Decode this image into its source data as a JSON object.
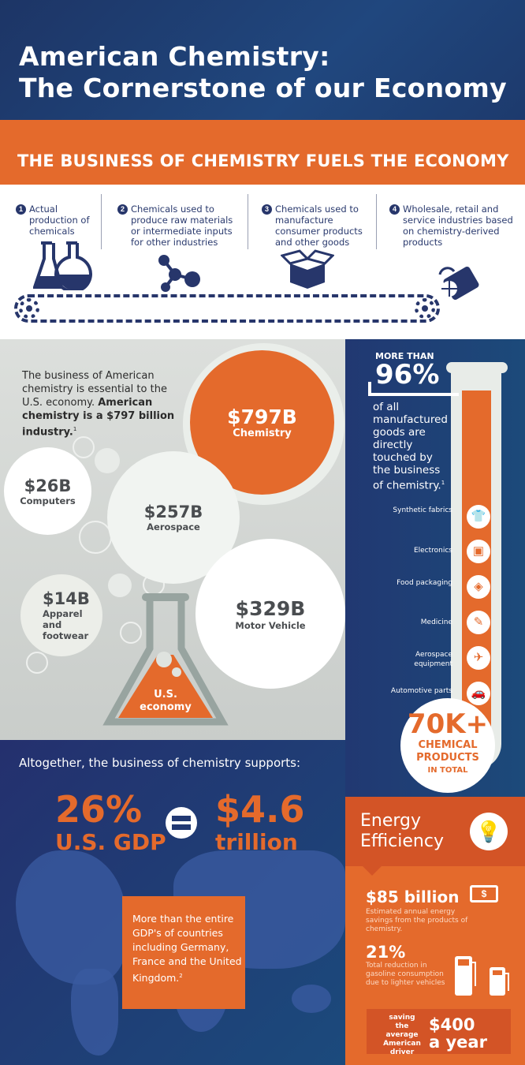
{
  "header": {
    "title_line1": "American Chemistry:",
    "title_line2": "The Cornerstone of our Economy"
  },
  "band": {
    "heading": "THE BUSINESS OF CHEMISTRY FUELS THE ECONOMY"
  },
  "steps": [
    {
      "num": "1",
      "text": "Actual production of chemicals",
      "icon": "flasks-icon"
    },
    {
      "num": "2",
      "text": "Chemicals used to produce raw materials or intermediate inputs for other industries",
      "icon": "molecule-icon"
    },
    {
      "num": "3",
      "text": "Chemicals used to manufacture consumer products and other goods",
      "icon": "open-box-icon"
    },
    {
      "num": "4",
      "text": "Wholesale, retail and service industries based on chemistry-derived products",
      "icon": "shopping-bag-icon"
    }
  ],
  "economy": {
    "intro_plain": "The business of American chemistry is essential to the U.S. economy. ",
    "intro_bold": "American chemistry is a $797 billion industry.",
    "intro_footnote": "1",
    "bubbles": [
      {
        "value": "$797B",
        "label": "Chemistry"
      },
      {
        "value": "$26B",
        "label": "Computers"
      },
      {
        "value": "$257B",
        "label": "Aerospace"
      },
      {
        "value": "$14B",
        "label": "Apparel and footwear"
      },
      {
        "value": "$329B",
        "label": "Motor Vehicle"
      }
    ],
    "flask_label": "U.S. economy"
  },
  "goods": {
    "more_than": "MORE THAN",
    "percent": "96%",
    "text": "of all manufactured goods are directly touched by the business of chemistry.",
    "footnote": "1",
    "products": [
      {
        "label": "Synthetic fabrics",
        "icon": "tshirt-icon"
      },
      {
        "label": "Electronics",
        "icon": "music-player-icon"
      },
      {
        "label": "Food packaging",
        "icon": "food-container-icon"
      },
      {
        "label": "Medicine",
        "icon": "syringe-icon"
      },
      {
        "label": "Aerospace equipment",
        "icon": "airplane-icon"
      },
      {
        "label": "Automotive parts",
        "icon": "car-icon"
      }
    ],
    "total_value": "70K+",
    "total_label1": "CHEMICAL",
    "total_label2": "PRODUCTS",
    "total_label3": "IN TOTAL"
  },
  "support": {
    "heading": "Altogether, the business of chemistry supports:",
    "gdp_percent": "26%",
    "gdp_label": "U.S. GDP",
    "amount": "$4.6",
    "amount_unit": "trillion",
    "callout": "More than the entire GDP's of countries including Germany, France and the United Kingdom.",
    "callout_footnote": "2"
  },
  "energy": {
    "title_line1": "Energy",
    "title_line2": "Efficiency",
    "savings_value": "$85 billion",
    "savings_text": "Estimated annual energy savings from the products of chemistry.",
    "reduction_value": "21%",
    "reduction_text": "Total reduction in gasoline consumption due to lighter vehicles",
    "driver_text": "saving the average American driver",
    "driver_value1": "$400",
    "driver_value2": "a year"
  },
  "colors": {
    "navy": "#213872",
    "orange": "#e46a2c",
    "dark_orange": "#d35426",
    "grey": "#d2d6d3"
  }
}
